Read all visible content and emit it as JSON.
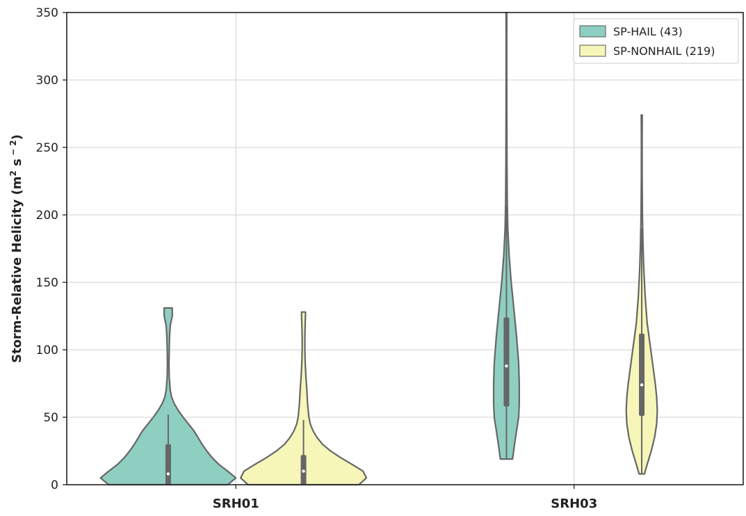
{
  "chart_data": {
    "type": "violin",
    "categories": [
      "SRH01",
      "SRH03"
    ],
    "ylabel": "Storm-Relative Helicity (m",
    "ylabel_sup1": "2",
    "ylabel_mid": " s",
    "ylabel_sup2": " − 2",
    "ylabel_end": ")",
    "ylim": [
      0,
      350
    ],
    "yticks": [
      0,
      50,
      100,
      150,
      200,
      250,
      300,
      350
    ],
    "grid": true,
    "legend_position": "top-right",
    "series": [
      {
        "name": "SP-HAIL (43)",
        "color": "#8ecfc2",
        "violins": [
          {
            "category": "SRH01",
            "min": 0,
            "max": 131,
            "q1": 0,
            "median": 8,
            "q3": 30,
            "whisker_low": 0,
            "whisker_high": 52,
            "density": [
              [
                0,
                0.88
              ],
              [
                5,
                1.0
              ],
              [
                10,
                0.88
              ],
              [
                15,
                0.75
              ],
              [
                20,
                0.65
              ],
              [
                25,
                0.57
              ],
              [
                30,
                0.5
              ],
              [
                35,
                0.44
              ],
              [
                40,
                0.38
              ],
              [
                45,
                0.3
              ],
              [
                50,
                0.22
              ],
              [
                55,
                0.15
              ],
              [
                60,
                0.09
              ],
              [
                65,
                0.05
              ],
              [
                70,
                0.03
              ],
              [
                80,
                0.015
              ],
              [
                90,
                0.012
              ],
              [
                100,
                0.015
              ],
              [
                110,
                0.02
              ],
              [
                118,
                0.03
              ],
              [
                125,
                0.06
              ],
              [
                131,
                0.06
              ]
            ]
          },
          {
            "category": "SRH03",
            "min": 19,
            "max": 350,
            "q1": 58,
            "median": 88,
            "q3": 124,
            "whisker_low": 19,
            "whisker_high": 207,
            "density": [
              [
                19,
                0.09
              ],
              [
                30,
                0.12
              ],
              [
                40,
                0.15
              ],
              [
                50,
                0.18
              ],
              [
                60,
                0.19
              ],
              [
                75,
                0.19
              ],
              [
                90,
                0.18
              ],
              [
                110,
                0.15
              ],
              [
                130,
                0.11
              ],
              [
                150,
                0.07
              ],
              [
                170,
                0.04
              ],
              [
                190,
                0.02
              ],
              [
                210,
                0.012
              ],
              [
                240,
                0.008
              ],
              [
                280,
                0.006
              ],
              [
                320,
                0.005
              ],
              [
                350,
                0.006
              ]
            ]
          }
        ]
      },
      {
        "name": "SP-NONHAIL (219)",
        "color": "#f6f6b9",
        "violins": [
          {
            "category": "SRH01",
            "min": 0,
            "max": 128,
            "q1": 0,
            "median": 10,
            "q3": 22,
            "whisker_low": 0,
            "whisker_high": 48,
            "density": [
              [
                0,
                0.82
              ],
              [
                5,
                0.93
              ],
              [
                10,
                0.88
              ],
              [
                15,
                0.72
              ],
              [
                20,
                0.55
              ],
              [
                25,
                0.4
              ],
              [
                30,
                0.28
              ],
              [
                35,
                0.2
              ],
              [
                40,
                0.14
              ],
              [
                45,
                0.1
              ],
              [
                50,
                0.08
              ],
              [
                60,
                0.06
              ],
              [
                70,
                0.05
              ],
              [
                80,
                0.035
              ],
              [
                90,
                0.025
              ],
              [
                100,
                0.02
              ],
              [
                110,
                0.02
              ],
              [
                120,
                0.025
              ],
              [
                128,
                0.03
              ]
            ]
          },
          {
            "category": "SRH03",
            "min": 8,
            "max": 274,
            "q1": 51,
            "median": 74,
            "q3": 112,
            "whisker_low": 8,
            "whisker_high": 190,
            "density": [
              [
                8,
                0.04
              ],
              [
                15,
                0.08
              ],
              [
                25,
                0.14
              ],
              [
                35,
                0.19
              ],
              [
                45,
                0.22
              ],
              [
                55,
                0.23
              ],
              [
                65,
                0.22
              ],
              [
                75,
                0.2
              ],
              [
                90,
                0.16
              ],
              [
                105,
                0.12
              ],
              [
                120,
                0.08
              ],
              [
                140,
                0.05
              ],
              [
                160,
                0.03
              ],
              [
                180,
                0.018
              ],
              [
                200,
                0.01
              ],
              [
                230,
                0.006
              ],
              [
                260,
                0.006
              ],
              [
                274,
                0.008
              ]
            ]
          }
        ]
      }
    ]
  }
}
